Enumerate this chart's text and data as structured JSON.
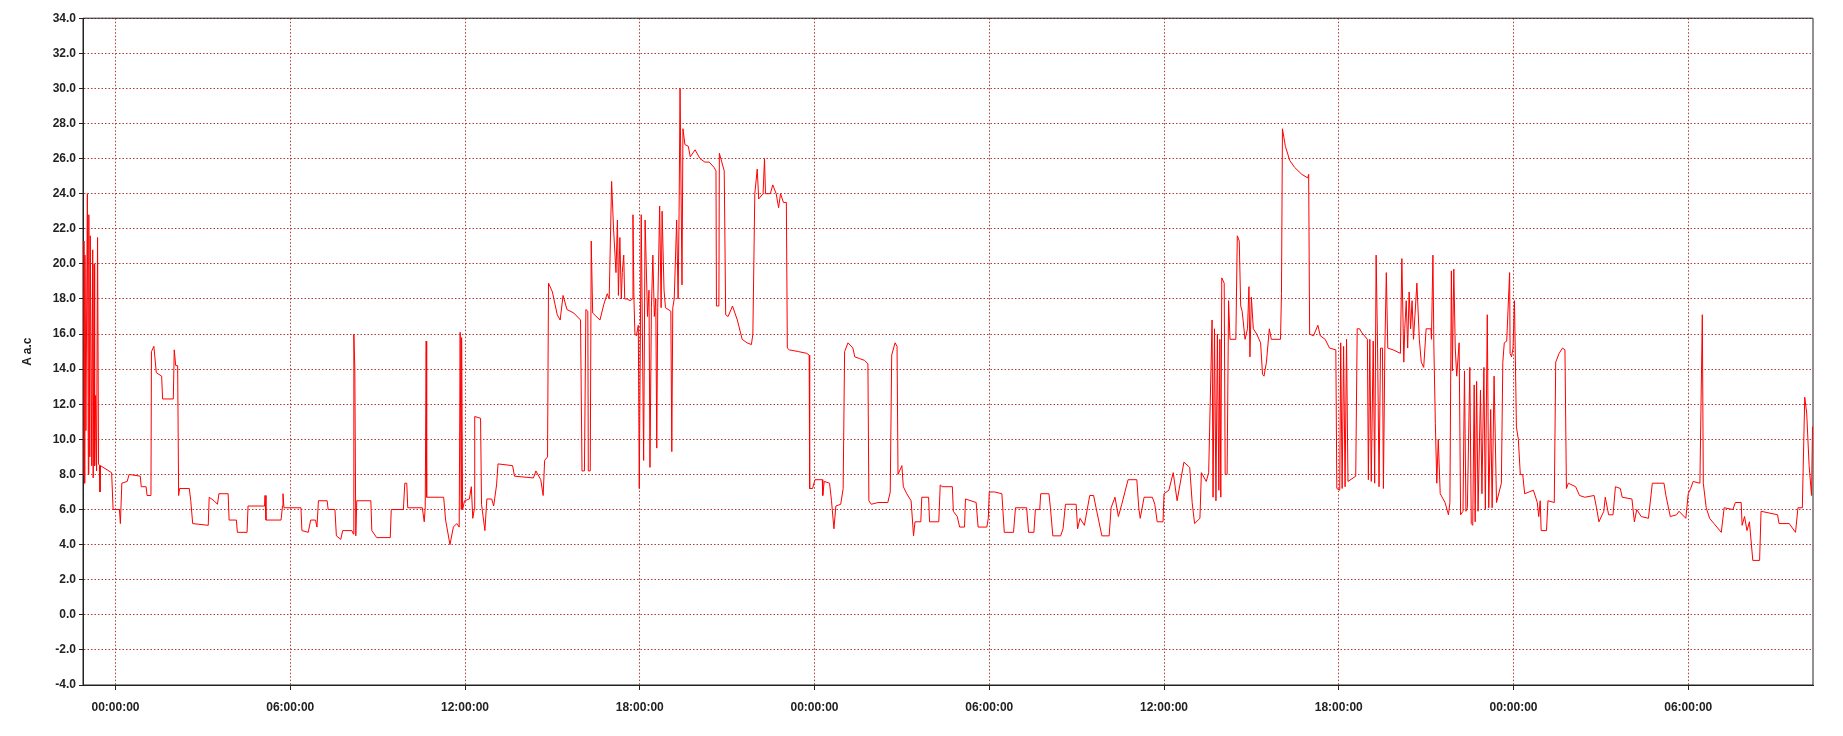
{
  "chart_data": {
    "type": "line",
    "ylabel": "A a.c",
    "x": [
      "--01-01T22:53",
      "--01-01T22:55",
      "--01-01T22:56",
      "--01-01T22:57",
      "--01-01T22:59",
      "--01-01T23:02",
      "--01-01T23:04",
      "--01-01T23:05",
      "--01-01T23:07",
      "--01-01T23:08",
      "--01-01T23:11",
      "--01-01T23:13",
      "--01-01T23:14",
      "--01-01T23:16",
      "--01-01T23:17",
      "--01-01T23:19",
      "--01-01T23:21",
      "--01-01T23:23",
      "--01-01T23:25",
      "--01-01T23:27",
      "--01-01T23:28",
      "--01-01T23:29",
      "--01-01T23:52",
      "--01-01T23:55",
      "--01-02T00:08",
      "--01-02T00:10",
      "--01-02T00:13",
      "--01-02T00:24",
      "--01-02T00:28",
      "--01-02T00:51",
      "--01-02T00:53",
      "--01-02T01:03",
      "--01-02T01:05",
      "--01-02T01:13",
      "--01-02T01:14",
      "--01-02T01:19",
      "--01-02T01:24",
      "--01-02T01:35",
      "--01-02T01:37",
      "--01-02T01:59",
      "--01-02T02:01",
      "--01-02T02:04",
      "--01-02T02:08",
      "--01-02T02:10",
      "--01-02T02:12",
      "--01-02T02:32",
      "--01-02T02:35",
      "--01-02T02:39",
      "--01-02T03:11",
      "--01-02T03:13",
      "--01-02T03:23",
      "--01-02T03:30",
      "--01-02T03:33",
      "--01-02T03:52",
      "--01-02T03:54",
      "--01-02T04:09",
      "--01-02T04:11",
      "--01-02T04:31",
      "--01-02T04:33",
      "--01-02T05:07",
      "--01-02T05:08",
      "--01-02T05:10",
      "--01-02T05:41",
      "--01-02T05:44",
      "--01-02T05:45",
      "--01-02T05:47",
      "--01-02T06:22",
      "--01-02T06:24",
      "--01-02T06:37",
      "--01-02T06:42",
      "--01-02T06:52",
      "--01-02T06:55",
      "--01-02T06:58",
      "--01-02T07:16",
      "--01-02T07:18",
      "--01-02T07:32",
      "--01-02T07:35",
      "--01-02T07:44",
      "--01-02T07:48",
      "--01-02T08:07",
      "--01-02T08:10",
      "--01-02T08:11",
      "--01-02T08:13",
      "--01-02T08:15",
      "--01-02T08:17",
      "--01-02T08:46",
      "--01-02T08:48",
      "--01-02T08:58",
      "--01-02T09:26",
      "--01-02T09:28",
      "--01-02T09:53",
      "--01-02T09:56",
      "--01-02T10:00",
      "--01-02T10:02",
      "--01-02T10:32",
      "--01-02T10:36",
      "--01-02T10:38",
      "--01-02T10:40",
      "--01-02T10:41",
      "--01-02T11:16",
      "--01-02T11:20",
      "--01-02T11:29",
      "--01-02T11:36",
      "--01-02T11:43",
      "--01-02T11:48",
      "--01-02T11:50",
      "--01-02T11:52",
      "--01-02T11:53",
      "--01-02T11:55",
      "--01-02T11:59",
      "--01-02T12:09",
      "--01-02T12:13",
      "--01-02T12:16",
      "--01-02T12:19",
      "--01-02T12:20",
      "--01-02T12:32",
      "--01-02T12:34",
      "--01-02T12:41",
      "--01-02T12:45",
      "--01-02T12:55",
      "--01-02T12:59",
      "--01-02T13:05",
      "--01-02T13:08",
      "--01-02T13:38",
      "--01-02T13:42",
      "--01-02T14:21",
      "--01-02T14:26",
      "--01-02T14:36",
      "--01-02T14:41",
      "--01-02T14:44",
      "--01-02T14:50",
      "--01-02T14:52",
      "--01-02T15:00",
      "--01-02T15:10",
      "--01-02T15:16",
      "--01-02T15:22",
      "--01-02T15:30",
      "--01-02T15:44",
      "--01-02T15:58",
      "--01-02T16:01",
      "--01-02T16:06",
      "--01-02T16:09",
      "--01-02T16:13",
      "--01-02T16:14",
      "--01-02T16:18",
      "--01-02T16:20",
      "--01-02T16:23",
      "--01-02T16:38",
      "--01-02T16:46",
      "--01-02T16:53",
      "--01-02T16:57",
      "--01-02T17:02",
      "--01-02T17:06",
      "--01-02T17:11",
      "--01-02T17:14",
      "--01-02T17:16",
      "--01-02T17:19",
      "--01-02T17:22",
      "--01-02T17:24",
      "--01-02T17:27",
      "--01-02T17:29",
      "--01-02T17:34",
      "--01-02T17:40",
      "--01-02T17:45",
      "--01-02T17:46",
      "--01-02T17:48",
      "--01-02T17:50",
      "--01-02T17:53",
      "--01-02T17:57",
      "--01-02T17:59",
      "--01-02T18:03",
      "--01-02T18:08",
      "--01-02T18:11",
      "--01-02T18:16",
      "--01-02T18:19",
      "--01-02T18:21",
      "--01-02T18:24",
      "--01-02T18:27",
      "--01-02T18:30",
      "--01-02T18:33",
      "--01-02T18:35",
      "--01-02T18:37",
      "--01-02T18:41",
      "--01-02T18:44",
      "--01-02T18:46",
      "--01-02T18:50",
      "--01-02T18:53",
      "--01-02T19:04",
      "--01-02T19:06",
      "--01-02T19:08",
      "--01-02T19:11",
      "--01-02T19:16",
      "--01-02T19:19",
      "--01-02T19:21",
      "--01-02T19:23",
      "--01-02T19:27",
      "--01-02T19:29",
      "--01-02T19:33",
      "--01-02T19:40",
      "--01-02T19:44",
      "--01-02T19:54",
      "--01-02T20:04",
      "--01-02T20:14",
      "--01-02T20:23",
      "--01-02T20:33",
      "--01-02T20:37",
      "--01-02T20:38",
      "--01-02T20:43",
      "--01-02T20:44",
      "--01-02T20:54",
      "--01-02T20:57",
      "--01-02T21:02",
      "--01-02T21:11",
      "--01-02T21:21",
      "--01-02T21:31",
      "--01-02T21:41",
      "--01-02T21:50",
      "--01-02T21:53",
      "--01-02T21:57",
      "--01-02T22:02",
      "--01-02T22:05",
      "--01-02T22:14",
      "--01-02T22:17",
      "--01-02T22:19",
      "--01-02T22:29",
      "--01-02T22:34",
      "--01-02T22:41",
      "--01-02T22:46",
      "--01-02T22:50",
      "--01-02T22:56",
      "--01-02T23:02",
      "--01-02T23:04",
      "--01-02T23:08",
      "--01-02T23:27",
      "--01-02T23:44",
      "--01-02T23:49",
      "--01-02T23:50",
      "--01-02T23:56",
      "--01-03T00:01",
      "--01-03T00:16",
      "--01-03T00:17",
      "--01-03T00:20",
      "--01-03T00:31",
      "--01-03T00:35",
      "--01-03T00:40",
      "--01-03T00:44",
      "--01-03T00:54",
      "--01-03T00:59",
      "--01-03T01:02",
      "--01-03T01:09",
      "--01-03T01:19",
      "--01-03T01:23",
      "--01-03T01:33",
      "--01-03T01:43",
      "--01-03T01:50",
      "--01-03T01:52",
      "--01-03T01:57",
      "--01-03T02:11",
      "--01-03T02:31",
      "--01-03T02:36",
      "--01-03T02:39",
      "--01-03T02:46",
      "--01-03T02:50",
      "--01-03T02:52",
      "--01-03T03:00",
      "--01-03T03:03",
      "--01-03T03:10",
      "--01-03T03:19",
      "--01-03T03:24",
      "--01-03T03:27",
      "--01-03T03:39",
      "--01-03T03:41",
      "--01-03T03:55",
      "--01-03T03:57",
      "--01-03T04:16",
      "--01-03T04:19",
      "--01-03T04:23",
      "--01-03T04:44",
      "--01-03T04:46",
      "--01-03T04:54",
      "--01-03T04:59",
      "--01-03T05:09",
      "--01-03T05:11",
      "--01-03T05:33",
      "--01-03T05:37",
      "--01-03T05:55",
      "--01-03T05:58",
      "--01-03T06:00",
      "--01-03T06:11",
      "--01-03T06:26",
      "--01-03T06:31",
      "--01-03T06:50",
      "--01-03T06:54",
      "--01-03T07:17",
      "--01-03T07:21",
      "--01-03T07:32",
      "--01-03T07:35",
      "--01-03T07:44",
      "--01-03T07:46",
      "--01-03T08:03",
      "--01-03T08:06",
      "--01-03T08:11",
      "--01-03T08:27",
      "--01-03T08:32",
      "--01-03T08:37",
      "--01-03T08:59",
      "--01-03T09:02",
      "--01-03T09:07",
      "--01-03T09:16",
      "--01-03T09:27",
      "--01-03T09:35",
      "--01-03T09:40",
      "--01-03T09:52",
      "--01-03T10:07",
      "--01-03T10:11",
      "--01-03T10:19",
      "--01-03T10:26",
      "--01-03T10:33",
      "--01-03T10:46",
      "--01-03T11:04",
      "--01-03T11:08",
      "--01-03T11:11",
      "--01-03T11:19",
      "--01-03T11:36",
      "--01-03T11:41",
      "--01-03T11:46",
      "--01-03T11:58",
      "--01-03T12:00",
      "--01-03T12:10",
      "--01-03T12:19",
      "--01-03T12:27",
      "--01-03T12:41",
      "--01-03T12:53",
      "--01-03T12:58",
      "--01-03T13:03",
      "--01-03T13:14",
      "--01-03T13:17",
      "--01-03T13:27",
      "--01-03T13:32",
      "--01-03T13:39",
      "--01-03T13:41",
      "--01-03T13:44",
      "--01-03T13:47",
      "--01-03T13:50",
      "--01-03T13:53",
      "--01-03T13:55",
      "--01-03T13:57",
      "--01-03T13:59",
      "--01-03T14:04",
      "--01-03T14:06",
      "--01-03T14:10",
      "--01-03T14:13",
      "--01-03T14:16",
      "--01-03T14:28",
      "--01-03T14:31",
      "--01-03T14:35",
      "--01-03T14:38",
      "--01-03T14:41",
      "--01-03T14:47",
      "--01-03T14:52",
      "--01-03T14:55",
      "--01-03T14:57",
      "--01-03T15:00",
      "--01-03T15:04",
      "--01-03T15:11",
      "--01-03T15:19",
      "--01-03T15:23",
      "--01-03T15:26",
      "--01-03T15:31",
      "--01-03T15:37",
      "--01-03T15:41",
      "--01-03T16:00",
      "--01-03T16:02",
      "--01-03T16:04",
      "--01-03T16:10",
      "--01-03T16:19",
      "--01-03T16:29",
      "--01-03T16:44",
      "--01-03T16:56",
      "--01-03T16:58",
      "--01-03T17:00",
      "--01-03T17:08",
      "--01-03T17:17",
      "--01-03T17:22",
      "--01-03T17:32",
      "--01-03T17:41",
      "--01-03T17:54",
      "--01-03T17:56",
      "--01-03T18:02",
      "--01-03T18:04",
      "--01-03T18:07",
      "--01-03T18:10",
      "--01-03T18:13",
      "--01-03T18:16",
      "--01-03T18:19",
      "--01-03T18:35",
      "--01-03T18:38",
      "--01-03T18:43",
      "--01-03T18:47",
      "--01-03T18:59",
      "--01-03T19:01",
      "--01-03T19:04",
      "--01-03T19:07",
      "--01-03T19:11",
      "--01-03T19:14",
      "--01-03T19:17",
      "--01-03T19:20",
      "--01-03T19:23",
      "--01-03T19:26",
      "--01-03T19:30",
      "--01-03T19:32",
      "--01-03T19:35",
      "--01-03T19:38",
      "--01-03T19:41",
      "--01-03T19:52",
      "--01-03T20:07",
      "--01-03T20:10",
      "--01-03T20:14",
      "--01-03T20:16",
      "--01-03T20:19",
      "--01-03T20:22",
      "--01-03T20:25",
      "--01-03T20:28",
      "--01-03T20:31",
      "--01-03T20:34",
      "--01-03T20:41",
      "--01-03T20:46",
      "--01-03T20:50",
      "--01-03T20:55",
      "--01-03T21:00",
      "--01-03T21:10",
      "--01-03T21:11",
      "--01-03T21:14",
      "--01-03T21:16",
      "--01-03T21:19",
      "--01-03T21:22",
      "--01-03T21:25",
      "--01-03T21:29",
      "--01-03T21:39",
      "--01-03T21:46",
      "--01-03T21:49",
      "--01-03T21:52",
      "--01-03T21:54",
      "--01-03T21:57",
      "--01-03T22:00",
      "--01-03T22:03",
      "--01-03T22:08",
      "--01-03T22:11",
      "--01-03T22:16",
      "--01-03T22:19",
      "--01-03T22:22",
      "--01-03T22:25",
      "--01-03T22:30",
      "--01-03T22:33",
      "--01-03T22:36",
      "--01-03T22:39",
      "--01-03T22:41",
      "--01-03T22:44",
      "--01-03T22:47",
      "--01-03T22:52",
      "--01-03T22:55",
      "--01-03T22:59",
      "--01-03T23:02",
      "--01-03T23:06",
      "--01-03T23:09",
      "--01-03T23:13",
      "--01-03T23:16",
      "--01-03T23:20",
      "--01-03T23:25",
      "--01-03T23:35",
      "--01-03T23:38",
      "--01-03T23:41",
      "--01-03T23:46",
      "--01-03T23:52",
      "--01-03T23:53",
      "--01-03T23:56",
      "--01-03T23:59",
      "--01-04T00:02",
      "--01-04T00:06",
      "--01-04T00:10",
      "--01-04T00:14",
      "--01-04T00:19",
      "--01-04T00:23",
      "--01-04T00:41",
      "--01-04T00:49",
      "--01-04T00:52",
      "--01-04T00:55",
      "--01-04T00:57",
      "--01-04T01:08",
      "--01-04T01:11",
      "--01-04T01:24",
      "--01-04T01:27",
      "--01-04T01:34",
      "--01-04T01:41",
      "--01-04T01:46",
      "--01-04T01:49",
      "--01-04T01:53",
      "--01-04T02:08",
      "--01-04T02:16",
      "--01-04T02:27",
      "--01-04T02:46",
      "--01-04T02:51",
      "--01-04T02:56",
      "--01-04T03:06",
      "--01-04T03:09",
      "--01-04T03:16",
      "--01-04T03:25",
      "--01-04T03:30",
      "--01-04T03:40",
      "--01-04T03:44",
      "--01-04T04:04",
      "--01-04T04:09",
      "--01-04T04:14",
      "--01-04T04:23",
      "--01-04T04:38",
      "--01-04T04:46",
      "--01-04T05:10",
      "--01-04T05:14",
      "--01-04T05:23",
      "--01-04T05:36",
      "--01-04T05:41",
      "--01-04T05:55",
      "--01-04T06:00",
      "--01-04T06:05",
      "--01-04T06:10",
      "--01-04T06:24",
      "--01-04T06:29",
      "--01-04T06:31",
      "--01-04T06:37",
      "--01-04T06:44",
      "--01-04T06:53",
      "--01-04T07:08",
      "--01-04T07:14",
      "--01-04T07:32",
      "--01-04T07:37",
      "--01-04T07:49",
      "--01-04T07:51",
      "--01-04T07:56",
      "--01-04T08:01",
      "--01-04T08:06",
      "--01-04T08:13",
      "--01-04T08:27",
      "--01-04T08:30",
      "--01-04T09:04",
      "--01-04T09:07",
      "--01-04T09:28",
      "--01-04T09:41",
      "--01-04T09:46",
      "--01-04T09:55",
      "--01-04T10:00",
      "--01-04T10:04",
      "--01-04T10:09",
      "--01-04T10:14",
      "--01-04T10:16"
    ],
    "series": [
      {
        "color": "#ff0000",
        "values": [
          8.0,
          21.3,
          7.5,
          20.5,
          10.5,
          24.0,
          8.0,
          22.8,
          9.0,
          21.6,
          8.5,
          20.8,
          7.8,
          20.0,
          8.5,
          12.5,
          8.2,
          21.5,
          8.6,
          8.5,
          7.0,
          8.5,
          8.1,
          6.0,
          6.0,
          5.2,
          7.5,
          7.6,
          8.0,
          7.9,
          7.3,
          7.3,
          6.8,
          6.8,
          15.0,
          15.3,
          13.8,
          13.6,
          12.3,
          12.3,
          15.1,
          14.2,
          14.2,
          6.8,
          7.2,
          7.2,
          6.5,
          5.2,
          5.1,
          6.7,
          6.5,
          6.3,
          6.9,
          6.9,
          5.4,
          5.4,
          4.7,
          4.7,
          6.2,
          6.2,
          6.8,
          5.4,
          5.4,
          6.2,
          6.9,
          6.1,
          6.1,
          4.8,
          4.7,
          5.4,
          5.4,
          5.0,
          6.5,
          6.5,
          6.0,
          6.0,
          4.5,
          4.3,
          4.8,
          4.8,
          4.6,
          16.0,
          14.0,
          4.5,
          6.5,
          6.5,
          4.8,
          4.4,
          4.4,
          6.0,
          6.0,
          7.5,
          7.5,
          6.1,
          6.1,
          5.3,
          6.1,
          15.6,
          6.7,
          6.7,
          5.4,
          4.0,
          5.0,
          5.2,
          5.0,
          16.1,
          6.0,
          15.8,
          6.0,
          6.5,
          6.6,
          7.3,
          5.5,
          6.0,
          11.3,
          11.2,
          6.3,
          4.8,
          6.6,
          6.6,
          6.2,
          7.4,
          8.6,
          8.5,
          7.9,
          7.8,
          8.2,
          7.7,
          6.8,
          8.8,
          9.0,
          18.9,
          18.4,
          17.1,
          16.8,
          18.2,
          17.4,
          17.2,
          16.8,
          8.2,
          8.2,
          17.4,
          17.3,
          8.2,
          8.2,
          21.3,
          17.2,
          16.8,
          17.7,
          18.3,
          18.0,
          24.7,
          22.0,
          19.5,
          22.5,
          18.2,
          21.5,
          18.0,
          19.5,
          20.5,
          18.0,
          18.0,
          17.9,
          18.0,
          22.8,
          18.0,
          16.0,
          15.9,
          16.5,
          7.2,
          22.8,
          8.8,
          22.5,
          17.0,
          18.5,
          8.4,
          17.5,
          20.5,
          17.0,
          18.0,
          9.5,
          17.5,
          23.3,
          17.5,
          23.0,
          18.5,
          17.5,
          17.3,
          9.3,
          17.5,
          18.0,
          22.5,
          18.0,
          23.0,
          30.0,
          18.8,
          27.7,
          26.8,
          26.7,
          26.1,
          26.5,
          26.0,
          25.8,
          25.8,
          25.5,
          25.3,
          17.6,
          17.6,
          26.3,
          25.3,
          17.1,
          17.0,
          17.6,
          16.8,
          15.7,
          15.5,
          15.4,
          16.0,
          24.0,
          25.4,
          23.7,
          24.0,
          26.0,
          24.0,
          24.0,
          24.5,
          24.0,
          23.2,
          24.0,
          23.5,
          23.5,
          15.2,
          15.1,
          15.0,
          14.9,
          14.8,
          7.2,
          7.2,
          7.7,
          7.7,
          6.8,
          7.6,
          7.5,
          6.5,
          4.9,
          6.2,
          6.3,
          7.2,
          15.0,
          15.5,
          15.2,
          14.7,
          14.6,
          14.5,
          14.3,
          6.5,
          6.3,
          6.4,
          6.4,
          7.0,
          14.8,
          15.5,
          15.3,
          8.0,
          8.5,
          7.3,
          6.9,
          6.5,
          4.5,
          5.3,
          5.3,
          6.7,
          6.7,
          5.3,
          5.3,
          7.4,
          7.3,
          7.3,
          5.9,
          5.6,
          5.0,
          5.0,
          6.6,
          6.4,
          5.0,
          5.0,
          5.5,
          7.0,
          7.0,
          6.9,
          4.7,
          4.7,
          6.1,
          6.1,
          4.7,
          4.7,
          6.0,
          6.0,
          6.9,
          6.9,
          6.1,
          4.5,
          4.5,
          4.9,
          6.3,
          6.3,
          4.9,
          5.5,
          5.1,
          6.8,
          6.8,
          6.1,
          4.5,
          4.5,
          6.1,
          6.7,
          5.6,
          6.3,
          7.7,
          7.7,
          6.1,
          5.5,
          6.7,
          6.7,
          6.3,
          5.3,
          5.3,
          6.9,
          7.1,
          8.1,
          6.5,
          8.7,
          8.4,
          6.4,
          5.2,
          5.5,
          8.1,
          7.6,
          8.1,
          16.8,
          6.7,
          16.3,
          6.5,
          16.0,
          7.1,
          15.7,
          6.7,
          19.2,
          18.9,
          8.0,
          8.0,
          17.9,
          15.7,
          15.7,
          21.6,
          21.3,
          17.6,
          17.3,
          15.7,
          16.3,
          18.7,
          14.7,
          18.1,
          16.3,
          16.0,
          15.5,
          13.7,
          13.6,
          14.4,
          16.3,
          15.7,
          15.7,
          18.3,
          27.7,
          26.7,
          25.9,
          25.5,
          25.1,
          24.9,
          25.1,
          16.0,
          15.9,
          16.5,
          15.9,
          15.7,
          15.2,
          15.1,
          7.2,
          7.1,
          15.5,
          7.2,
          15.3,
          7.3,
          15.7,
          7.6,
          7.9,
          16.3,
          16.3,
          16.1,
          15.7,
          7.7,
          15.7,
          7.6,
          15.6,
          7.5,
          20.5,
          15.2,
          7.3,
          15.2,
          15.2,
          7.2,
          15.2,
          19.5,
          15.2,
          15.1,
          14.9,
          20.3,
          14.4,
          16.3,
          17.9,
          15.2,
          18.4,
          16.3,
          17.9,
          15.7,
          18.9,
          15.7,
          14.4,
          14.1,
          16.3,
          16.3,
          15.7,
          20.5,
          15.2,
          10.9,
          7.5,
          10.0,
          6.9,
          6.4,
          5.7,
          6.4,
          19.6,
          13.9,
          19.7,
          15.2,
          13.6,
          15.5,
          5.7,
          5.9,
          13.9,
          5.9,
          6.1,
          14.1,
          5.2,
          5.1,
          13.1,
          5.3,
          13.3,
          5.9,
          12.8,
          6.9,
          14.1,
          6.0,
          17.1,
          6.1,
          11.7,
          6.1,
          13.6,
          6.4,
          7.5,
          14.4,
          15.5,
          15.6,
          19.5,
          14.9,
          14.7,
          15.2,
          17.9,
          10.7,
          10.0,
          8.0,
          8.0,
          6.9,
          7.1,
          6.4,
          5.6,
          6.5,
          4.8,
          4.8,
          6.5,
          6.4,
          14.4,
          14.9,
          15.2,
          15.1,
          7.2,
          7.5,
          7.3,
          6.8,
          6.7,
          6.8,
          6.1,
          5.3,
          5.9,
          6.7,
          5.7,
          5.7,
          7.3,
          7.2,
          6.7,
          6.6,
          5.3,
          6.0,
          5.6,
          5.5,
          7.5,
          7.5,
          6.8,
          5.6,
          5.7,
          5.9,
          5.5,
          6.9,
          7.2,
          7.6,
          7.5,
          17.1,
          7.5,
          6.1,
          5.5,
          5.2,
          4.7,
          6.1,
          6.0,
          6.4,
          6.4,
          5.1,
          5.6,
          4.8,
          5.3,
          3.1,
          3.1,
          5.9,
          5.7,
          5.2,
          5.2,
          4.7,
          6.1,
          6.1,
          12.4,
          11.5,
          8.5,
          6.8,
          10.7
        ]
      }
    ],
    "xlim": [
      "--01-01T22:53",
      "--01-04T10:17"
    ],
    "xticks": [
      {
        "value": "--01-02T00:00",
        "label": "00:00:00"
      },
      {
        "value": "--01-02T06:00",
        "label": "06:00:00"
      },
      {
        "value": "--01-02T12:00",
        "label": "12:00:00"
      },
      {
        "value": "--01-02T18:00",
        "label": "18:00:00"
      },
      {
        "value": "--01-03T00:00",
        "label": "00:00:00"
      },
      {
        "value": "--01-03T06:00",
        "label": "06:00:00"
      },
      {
        "value": "--01-03T12:00",
        "label": "12:00:00"
      },
      {
        "value": "--01-03T18:00",
        "label": "18:00:00"
      },
      {
        "value": "--01-04T00:00",
        "label": "00:00:00"
      },
      {
        "value": "--01-04T06:00",
        "label": "06:00:00"
      }
    ],
    "ylim": [
      -4,
      34
    ],
    "yticks": [
      {
        "value": -4,
        "label": "-4.0"
      },
      {
        "value": -2,
        "label": "-2.0"
      },
      {
        "value": 0,
        "label": "0.0"
      },
      {
        "value": 2,
        "label": "2.0"
      },
      {
        "value": 4,
        "label": "4.0"
      },
      {
        "value": 6,
        "label": "6.0"
      },
      {
        "value": 8,
        "label": "8.0"
      },
      {
        "value": 10,
        "label": "10.0"
      },
      {
        "value": 12,
        "label": "12.0"
      },
      {
        "value": 14,
        "label": "14.0"
      },
      {
        "value": 16,
        "label": "16.0"
      },
      {
        "value": 18,
        "label": "18.0"
      },
      {
        "value": 20,
        "label": "20.0"
      },
      {
        "value": 22,
        "label": "22.0"
      },
      {
        "value": 24,
        "label": "24.0"
      },
      {
        "value": 26,
        "label": "26.0"
      },
      {
        "value": 28,
        "label": "28.0"
      },
      {
        "value": 30,
        "label": "30.0"
      },
      {
        "value": 32,
        "label": "32.0"
      },
      {
        "value": 34,
        "label": "34.0"
      }
    ],
    "grid": true,
    "marker": "none",
    "line_style": "solid"
  }
}
